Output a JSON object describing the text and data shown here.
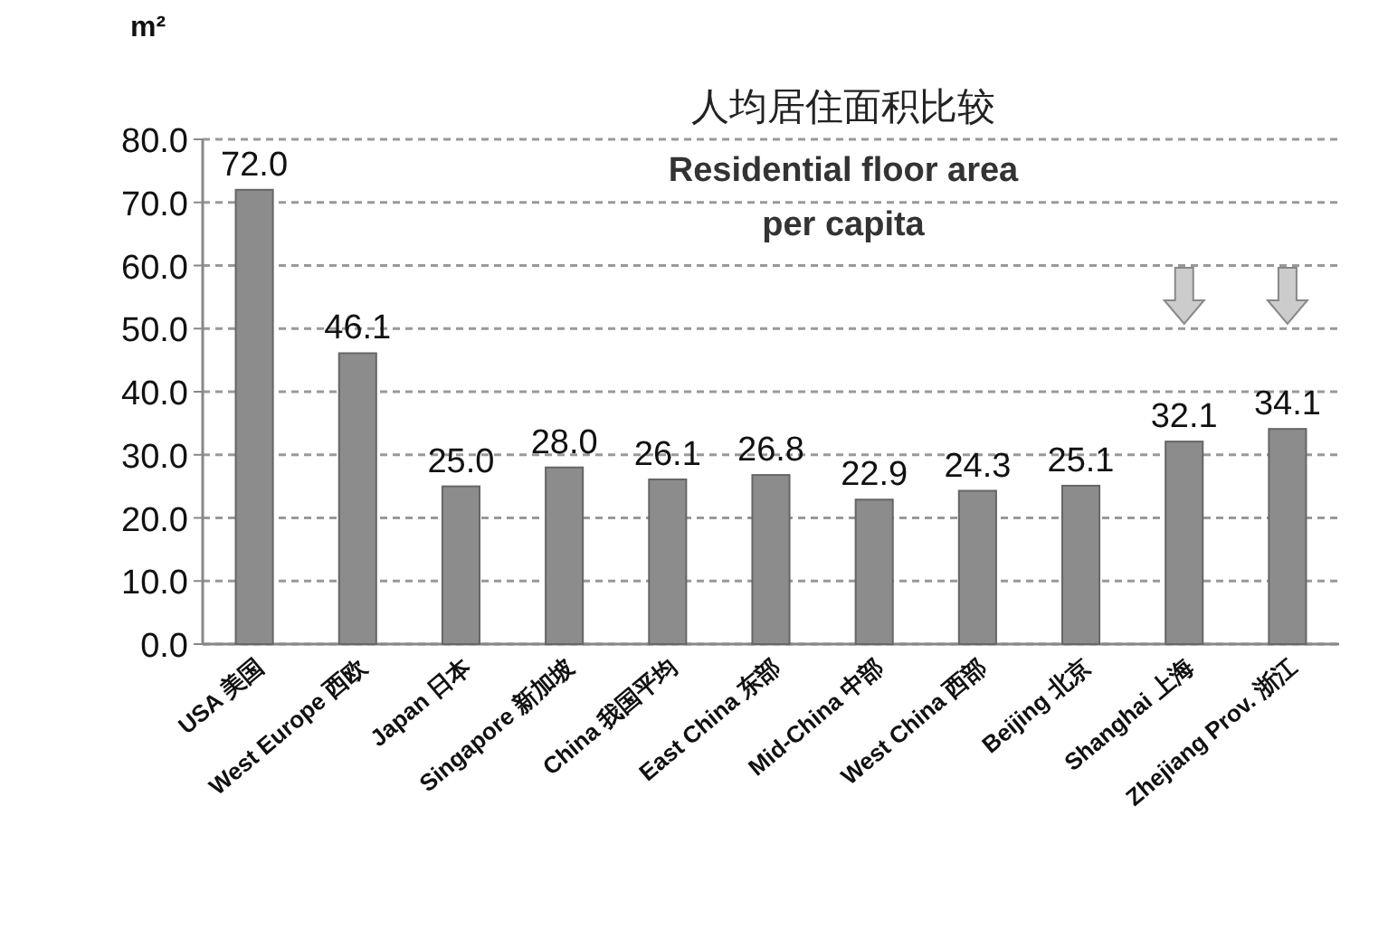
{
  "chart_data": {
    "type": "bar",
    "title": "人均居住面积比较",
    "subtitle": "Residential floor area per capita",
    "ylabel": "m²",
    "categories": [
      "USA 美国",
      "West Europe 西欧",
      "Japan 日本",
      "Singapore 新加坡",
      "China 我国平均",
      "East China 东部",
      "Mid-China 中部",
      "West China 西部",
      "Beijing 北京",
      "Shanghai 上海",
      "Zhejiang Prov. 浙江"
    ],
    "values": [
      72.0,
      46.1,
      25.0,
      28.0,
      26.1,
      26.8,
      22.9,
      24.3,
      25.1,
      32.1,
      34.1
    ],
    "value_labels": [
      "72.0",
      "46.1",
      "25.0",
      "28.0",
      "26.1",
      "26.8",
      "22.9",
      "24.3",
      "25.1",
      "32.1",
      "34.1"
    ],
    "color": "#8c8c8c",
    "ylim": [
      0,
      80
    ],
    "yticks": [
      {
        "value": 0,
        "label": "0.0"
      },
      {
        "value": 10,
        "label": "10.0"
      },
      {
        "value": 20,
        "label": "20.0"
      },
      {
        "value": 30,
        "label": "30.0"
      },
      {
        "value": 40,
        "label": "40.0"
      },
      {
        "value": 50,
        "label": "50.0"
      },
      {
        "value": 60,
        "label": "60.0"
      },
      {
        "value": 70,
        "label": "70.0"
      },
      {
        "value": 80,
        "label": "80.0"
      }
    ],
    "grid": "y"
  }
}
